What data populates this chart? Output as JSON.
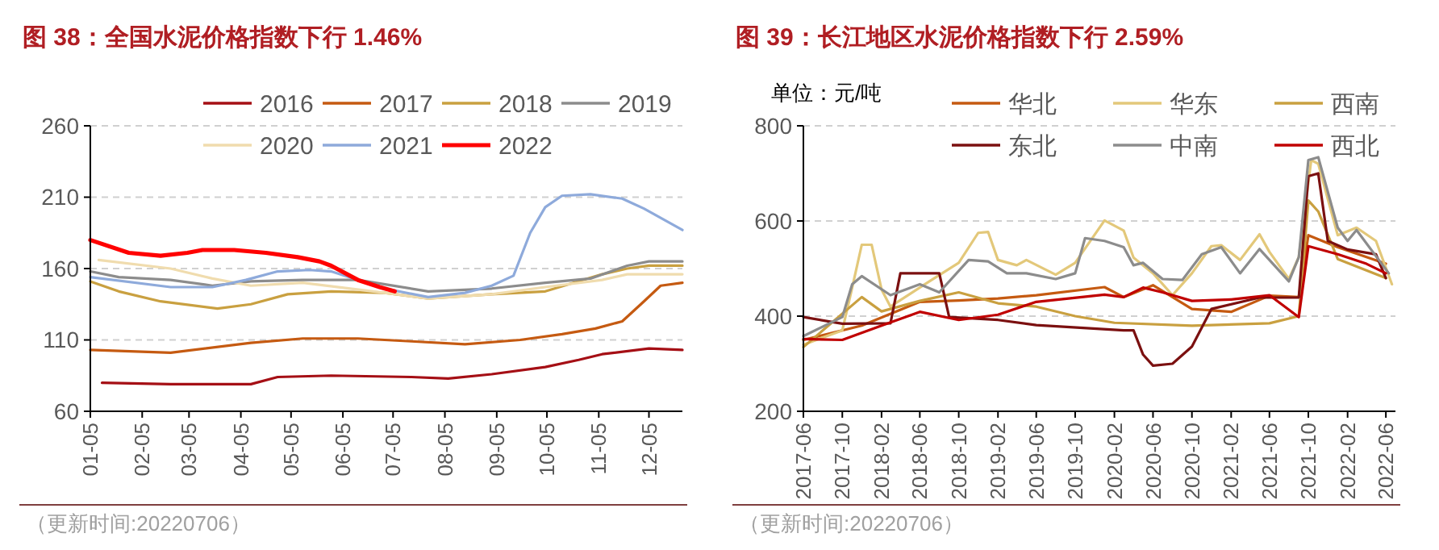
{
  "chart_data": [
    {
      "type": "line",
      "title": "图 38：全国水泥价格指数下行 1.46%",
      "xlim": [
        "--01-05",
        "--12-25"
      ],
      "xticks": [
        {
          "value": "--01-05",
          "label": "01-05"
        },
        {
          "value": "--02-05",
          "label": "02-05"
        },
        {
          "value": "--03-05",
          "label": "03-05"
        },
        {
          "value": "--04-05",
          "label": "04-05"
        },
        {
          "value": "--05-05",
          "label": "05-05"
        },
        {
          "value": "--06-05",
          "label": "06-05"
        },
        {
          "value": "--07-05",
          "label": "07-05"
        },
        {
          "value": "--08-05",
          "label": "08-05"
        },
        {
          "value": "--09-05",
          "label": "09-05"
        },
        {
          "value": "--10-05",
          "label": "10-05"
        },
        {
          "value": "--11-05",
          "label": "11-05"
        },
        {
          "value": "--12-05",
          "label": "12-05"
        }
      ],
      "ylim": [
        60,
        260
      ],
      "yticks": [
        60,
        110,
        160,
        210,
        260
      ],
      "grid": "y",
      "legend": "top",
      "marker": "none",
      "line_style": "solid",
      "annotations": [
        "（更新时间:20220706）"
      ],
      "series": [
        {
          "name": "2016",
          "color": "#a50f15",
          "x": [
            "--01-12",
            "--02-22",
            "--04-11",
            "--04-27",
            "--05-29",
            "--07-16",
            "--08-07",
            "--09-02",
            "--10-04",
            "--10-24",
            "--11-07",
            "--12-05",
            "--12-25"
          ],
          "values": [
            80,
            79,
            79,
            84,
            85,
            84,
            83,
            86,
            91,
            96,
            100,
            104,
            103
          ]
        },
        {
          "name": "2017",
          "color": "#c55a11",
          "x": [
            "--01-05",
            "--02-22",
            "--04-11",
            "--05-12",
            "--06-14",
            "--07-16",
            "--08-17",
            "--09-19",
            "--10-14",
            "--11-03",
            "--11-19",
            "--12-02",
            "--12-12",
            "--12-25"
          ],
          "values": [
            103,
            101,
            108,
            111,
            111,
            109,
            107,
            110,
            114,
            118,
            123,
            137,
            148,
            150
          ]
        },
        {
          "name": "2018",
          "color": "#c9a040",
          "x": [
            "--01-05",
            "--01-22",
            "--02-16",
            "--03-22",
            "--04-11",
            "--05-03",
            "--05-29",
            "--06-30",
            "--07-26",
            "--09-02",
            "--10-04",
            "--11-07",
            "--11-22",
            "--12-05",
            "--12-25"
          ],
          "values": [
            151,
            144,
            137,
            132,
            135,
            142,
            144,
            143,
            139,
            142,
            144,
            156,
            160,
            162,
            162
          ]
        },
        {
          "name": "2019",
          "color": "#8c8c8c",
          "x": [
            "--01-05",
            "--01-22",
            "--02-22",
            "--03-19",
            "--04-11",
            "--05-12",
            "--06-14",
            "--07-26",
            "--09-02",
            "--10-04",
            "--10-31",
            "--11-22",
            "--12-05",
            "--12-25"
          ],
          "values": [
            158,
            154,
            152,
            148,
            151,
            152,
            152,
            144,
            146,
            150,
            153,
            162,
            165,
            165
          ]
        },
        {
          "name": "2020",
          "color": "#f0dcae",
          "x": [
            "--01-10",
            "--02-22",
            "--03-19",
            "--04-11",
            "--05-12",
            "--06-30",
            "--07-26",
            "--09-02",
            "--10-04",
            "--11-07",
            "--11-22",
            "--12-25"
          ],
          "values": [
            166,
            160,
            153,
            148,
            150,
            143,
            139,
            142,
            147,
            152,
            156,
            156
          ]
        },
        {
          "name": "2021",
          "color": "#8eaadb",
          "x": [
            "--01-05",
            "--02-22",
            "--03-19",
            "--04-08",
            "--04-27",
            "--05-16",
            "--05-29",
            "--06-30",
            "--07-26",
            "--08-17",
            "--09-02",
            "--09-15",
            "--09-25",
            "--10-04",
            "--10-14",
            "--10-31",
            "--11-19",
            "--12-02",
            "--12-25"
          ],
          "values": [
            154,
            147,
            147,
            152,
            158,
            159,
            158,
            146,
            140,
            143,
            148,
            155,
            185,
            203,
            211,
            212,
            209,
            202,
            187
          ]
        },
        {
          "name": "2022",
          "color": "#ff0000",
          "x": [
            "--01-05",
            "--01-28",
            "--02-16",
            "--03-04",
            "--03-13",
            "--04-01",
            "--04-20",
            "--05-09",
            "--05-22",
            "--05-29",
            "--06-14",
            "--06-27",
            "--07-06"
          ],
          "values": [
            180,
            171,
            169,
            171,
            173,
            173,
            171,
            168,
            165,
            162,
            152,
            147,
            144
          ]
        }
      ]
    },
    {
      "type": "line",
      "title": "图 39：长江地区水泥价格指数下行 2.59%",
      "ylabel": "单位：元/吨",
      "xlim": [
        "2017-06",
        "2022-07"
      ],
      "xticks": [
        {
          "value": "2017-06",
          "label": "2017-06"
        },
        {
          "value": "2017-10",
          "label": "2017-10"
        },
        {
          "value": "2018-02",
          "label": "2018-02"
        },
        {
          "value": "2018-06",
          "label": "2018-06"
        },
        {
          "value": "2018-10",
          "label": "2018-10"
        },
        {
          "value": "2019-02",
          "label": "2019-02"
        },
        {
          "value": "2019-06",
          "label": "2019-06"
        },
        {
          "value": "2019-10",
          "label": "2019-10"
        },
        {
          "value": "2020-02",
          "label": "2020-02"
        },
        {
          "value": "2020-06",
          "label": "2020-06"
        },
        {
          "value": "2020-10",
          "label": "2020-10"
        },
        {
          "value": "2021-02",
          "label": "2021-02"
        },
        {
          "value": "2021-06",
          "label": "2021-06"
        },
        {
          "value": "2021-10",
          "label": "2021-10"
        },
        {
          "value": "2022-02",
          "label": "2022-02"
        },
        {
          "value": "2022-06",
          "label": "2022-06"
        }
      ],
      "ylim": [
        200,
        800
      ],
      "yticks": [
        200,
        400,
        600,
        800
      ],
      "grid": "y",
      "legend": "top",
      "marker": "none",
      "line_style": "solid",
      "annotations": [
        "（更新时间:20220706）"
      ],
      "series": [
        {
          "name": "华北",
          "color": "#c55a11",
          "x": [
            "2017-06",
            "2017-12",
            "2018-06",
            "2018-10",
            "2019-02",
            "2019-06",
            "2020-01",
            "2020-03",
            "2020-06",
            "2020-10",
            "2021-02",
            "2021-06",
            "2021-09",
            "2021-10",
            "2022-01",
            "2022-06"
          ],
          "values": [
            350,
            380,
            430,
            433,
            437,
            444,
            461,
            440,
            465,
            415,
            409,
            443,
            440,
            570,
            545,
            510
          ]
        },
        {
          "name": "华东",
          "color": "#e3c87a",
          "x": [
            "2017-06",
            "2017-10",
            "2017-11",
            "2017-12",
            "2018-01",
            "2018-02",
            "2018-03",
            "2018-07",
            "2018-10",
            "2018-12",
            "2019-01",
            "2019-02",
            "2019-04",
            "2019-05",
            "2019-08",
            "2019-10",
            "2020-01",
            "2020-03",
            "2020-04",
            "2020-06",
            "2020-08",
            "2020-10",
            "2020-12",
            "2021-01",
            "2021-03",
            "2021-05",
            "2021-06",
            "2021-08",
            "2021-09",
            "2021-10-10",
            "2021-11",
            "2022-01",
            "2022-03",
            "2022-05",
            "2022-06-20"
          ],
          "values": [
            340,
            370,
            460,
            550,
            550,
            456,
            420,
            473,
            512,
            575,
            577,
            518,
            507,
            518,
            487,
            512,
            601,
            580,
            523,
            490,
            444,
            490,
            547,
            549,
            518,
            572,
            535,
            478,
            524,
            728,
            720,
            570,
            586,
            558,
            467
          ]
        },
        {
          "name": "西南",
          "color": "#c9a040",
          "x": [
            "2017-06",
            "2017-12",
            "2018-02",
            "2018-06",
            "2018-10",
            "2019-02",
            "2019-06",
            "2019-10",
            "2020-02",
            "2020-10",
            "2021-06",
            "2021-09",
            "2021-10",
            "2021-11",
            "2022-01",
            "2022-06"
          ],
          "values": [
            335,
            440,
            410,
            432,
            450,
            427,
            420,
            400,
            386,
            380,
            385,
            400,
            643,
            620,
            520,
            480
          ]
        },
        {
          "name": "东北",
          "color": "#7b1010",
          "x": [
            "2017-06",
            "2017-10",
            "2018-03",
            "2018-04",
            "2018-08",
            "2018-09",
            "2019-02",
            "2019-06",
            "2020-03",
            "2020-04",
            "2020-05",
            "2020-06",
            "2020-08",
            "2020-10",
            "2020-12",
            "2021-05",
            "2021-09",
            "2021-10",
            "2021-11",
            "2021-12",
            "2022-02",
            "2022-05",
            "2022-06"
          ],
          "values": [
            398,
            384,
            385,
            490,
            490,
            398,
            392,
            381,
            370,
            370,
            319,
            296,
            300,
            336,
            415,
            439,
            439,
            694,
            700,
            558,
            540,
            530,
            480
          ]
        },
        {
          "name": "中南",
          "color": "#8c8c8c",
          "x": [
            "2017-06",
            "2017-10",
            "2017-11",
            "2017-12",
            "2018-03",
            "2018-06",
            "2018-08",
            "2018-11",
            "2019-01",
            "2019-03",
            "2019-05",
            "2019-08",
            "2019-10",
            "2019-11",
            "2020-01",
            "2020-03",
            "2020-04",
            "2020-05",
            "2020-07",
            "2020-09",
            "2020-11",
            "2021-01",
            "2021-03",
            "2021-05",
            "2021-08",
            "2021-09",
            "2021-10",
            "2021-11",
            "2022-01",
            "2022-02",
            "2022-03",
            "2022-06-10"
          ],
          "values": [
            358,
            398,
            467,
            484,
            444,
            467,
            450,
            518,
            515,
            490,
            490,
            478,
            490,
            564,
            558,
            545,
            507,
            512,
            478,
            476,
            530,
            545,
            490,
            541,
            473,
            524,
            728,
            734,
            586,
            558,
            581,
            490
          ]
        },
        {
          "name": "西北",
          "color": "#c00000",
          "x": [
            "2017-06",
            "2017-10",
            "2018-02",
            "2018-06",
            "2018-10",
            "2019-02",
            "2019-06",
            "2020-01",
            "2020-03",
            "2020-05",
            "2020-07",
            "2020-10",
            "2021-02",
            "2021-06",
            "2021-09",
            "2021-10",
            "2022-01",
            "2022-04",
            "2022-06"
          ],
          "values": [
            352,
            350,
            380,
            409,
            392,
            403,
            430,
            445,
            440,
            460,
            450,
            432,
            435,
            444,
            398,
            547,
            530,
            510,
            490
          ]
        }
      ]
    }
  ]
}
